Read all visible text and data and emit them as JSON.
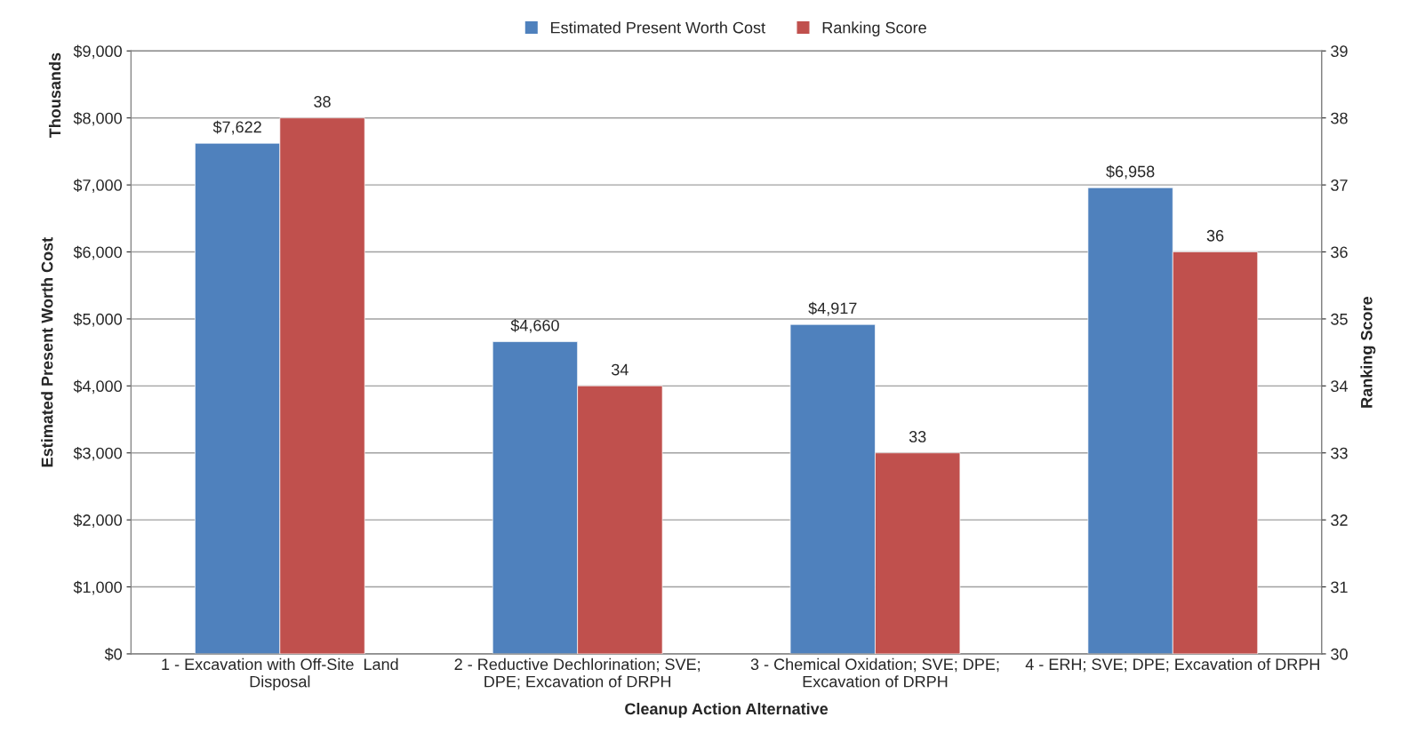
{
  "chart_data": {
    "type": "bar",
    "categories": [
      "1 - Excavation with Off-Site  Land\nDisposal",
      "2 - Reductive Dechlorination; SVE;\nDPE; Excavation of DRPH",
      "3 - Chemical Oxidation; SVE; DPE;\nExcavation of DRPH",
      "4 - ERH; SVE; DPE; Excavation of DRPH"
    ],
    "series": [
      {
        "name": "Estimated Present Worth Cost",
        "color": "#4f81bd",
        "values": [
          7622,
          4660,
          4917,
          6958
        ],
        "value_labels": [
          "$7,622",
          "$4,660",
          "$4,917",
          "$6,958"
        ]
      },
      {
        "name": "Ranking Score",
        "color": "#c0504d",
        "axis": "y2",
        "values": [
          38,
          34,
          33,
          36
        ],
        "value_labels": [
          "38",
          "34",
          "33",
          "36"
        ]
      }
    ],
    "xlabel": "Cleanup Action Alternative",
    "ylabel": "Estimated Present Worth Cost",
    "y2label": "Ranking Score",
    "annotations": [
      "Thousands"
    ],
    "ylim": [
      0,
      9000
    ],
    "yticks": [
      {
        "value": 0,
        "label": "$0"
      },
      {
        "value": 1000,
        "label": "$1,000"
      },
      {
        "value": 2000,
        "label": "$2,000"
      },
      {
        "value": 3000,
        "label": "$3,000"
      },
      {
        "value": 4000,
        "label": "$4,000"
      },
      {
        "value": 5000,
        "label": "$5,000"
      },
      {
        "value": 6000,
        "label": "$6,000"
      },
      {
        "value": 7000,
        "label": "$7,000"
      },
      {
        "value": 8000,
        "label": "$8,000"
      },
      {
        "value": 9000,
        "label": "$9,000"
      }
    ],
    "y2lim": [
      30,
      39
    ],
    "y2ticks": [
      30,
      31,
      32,
      33,
      34,
      35,
      36,
      37,
      38,
      39
    ],
    "grid": "y",
    "legend": "top"
  }
}
